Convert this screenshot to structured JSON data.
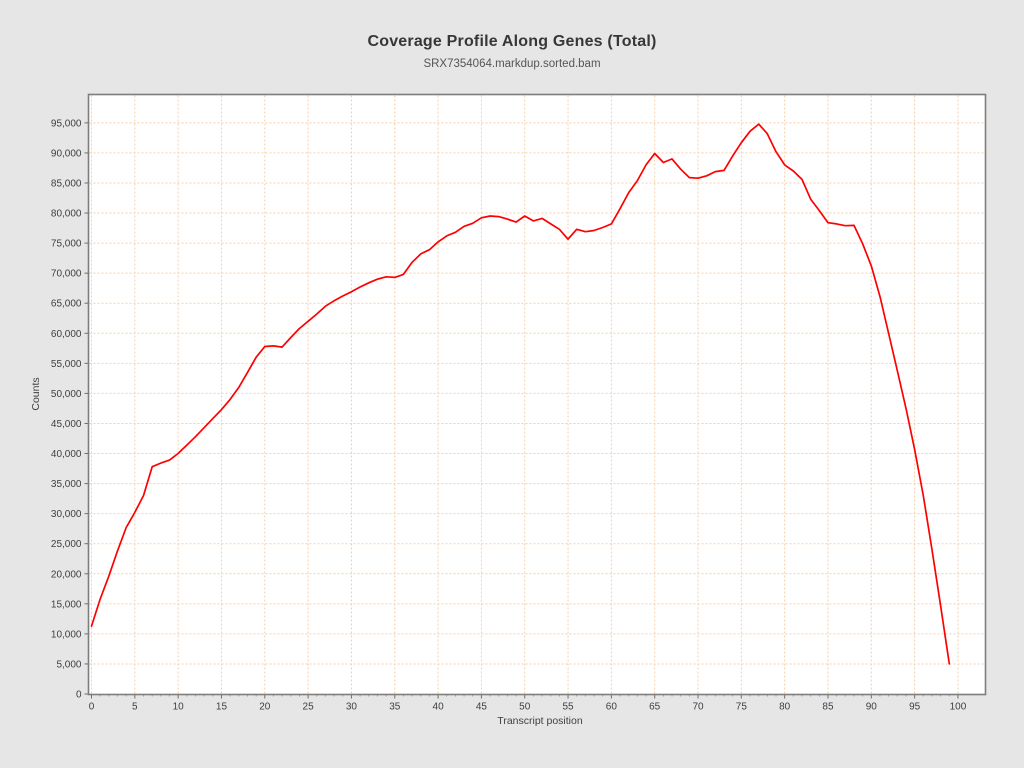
{
  "chart_data": {
    "type": "line",
    "title": "Coverage Profile Along Genes (Total)",
    "subtitle": "SRX7354064.markdup.sorted.bam",
    "xlabel": "Transcript position",
    "ylabel": "Counts",
    "xlim": [
      0,
      103
    ],
    "ylim": [
      0,
      99800
    ],
    "grid": true,
    "legend": "none",
    "x_ticks": [
      0,
      5,
      10,
      15,
      20,
      25,
      30,
      35,
      40,
      45,
      50,
      55,
      60,
      65,
      70,
      75,
      80,
      85,
      90,
      95,
      100
    ],
    "y_ticks": [
      0,
      5000,
      10000,
      15000,
      20000,
      25000,
      30000,
      35000,
      40000,
      45000,
      50000,
      55000,
      60000,
      65000,
      70000,
      75000,
      80000,
      85000,
      90000,
      95000
    ],
    "colors": {
      "background": "#e6e6e6",
      "plot_background": "#ffffff",
      "gridline": "#f6cfa7",
      "frame": "#7d7d7d",
      "line": "#ff0000",
      "title_text": "#373737",
      "tick_text": "#3f3f3f"
    },
    "series": [
      {
        "name": "SRX7354064.markdup.sorted.bam",
        "color": "#ff0000",
        "x_start": 0,
        "x_step": 1,
        "values": [
          11300,
          15800,
          19600,
          23800,
          27700,
          30200,
          33000,
          37800,
          38400,
          38900,
          40000,
          41400,
          42800,
          44300,
          45800,
          47300,
          49000,
          51000,
          53500,
          56000,
          57800,
          57900,
          57700,
          59300,
          60800,
          62000,
          63200,
          64500,
          65400,
          66200,
          66900,
          67700,
          68400,
          69000,
          69400,
          69300,
          69800,
          71800,
          73200,
          73900,
          75200,
          76200,
          76800,
          77800,
          78300,
          79200,
          79500,
          79400,
          79000,
          78500,
          79500,
          78700,
          79100,
          78200,
          77300,
          75650,
          77300,
          76900,
          77100,
          77600,
          78200,
          80700,
          83400,
          85400,
          88000,
          89900,
          88400,
          89000,
          87300,
          85900,
          85800,
          86200,
          86900,
          87100,
          89500,
          91700,
          93600,
          94800,
          93200,
          90200,
          88000,
          87000,
          85600,
          82300,
          80400,
          78400,
          78200,
          77900,
          77950,
          74900,
          71200,
          66100,
          60000,
          53800,
          47500,
          40700,
          33000,
          24000,
          14700,
          5000
        ]
      }
    ]
  }
}
